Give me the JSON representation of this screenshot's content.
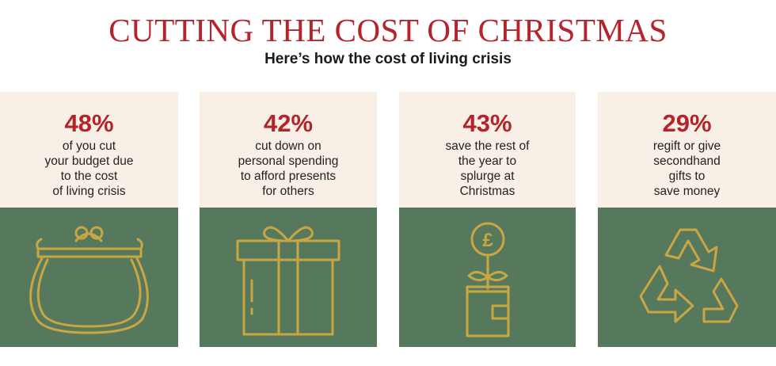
{
  "header": {
    "title": "CUTTING THE COST OF CHRISTMAS",
    "subtitle": "Here’s how the cost of living crisis"
  },
  "colors": {
    "accent_red": "#b5232b",
    "card_cream": "#f8f0e6",
    "card_green": "#56795d",
    "icon_gold": "#c9a642"
  },
  "cards": [
    {
      "stat": "48%",
      "text": "of you cut\nyour budget due\nto the cost\nof living crisis",
      "icon": "purse-icon"
    },
    {
      "stat": "42%",
      "text": "cut down on\npersonal spending\nto afford presents\nfor others",
      "icon": "gift-box-icon"
    },
    {
      "stat": "43%",
      "text": "save the rest of\nthe year to\nsplurge at\nChristmas",
      "icon": "money-plant-wallet-icon",
      "icon_glyph": "£"
    },
    {
      "stat": "29%",
      "text": "regift or give\nsecondhand\ngifts to\nsave money",
      "icon": "recycle-icon"
    }
  ]
}
